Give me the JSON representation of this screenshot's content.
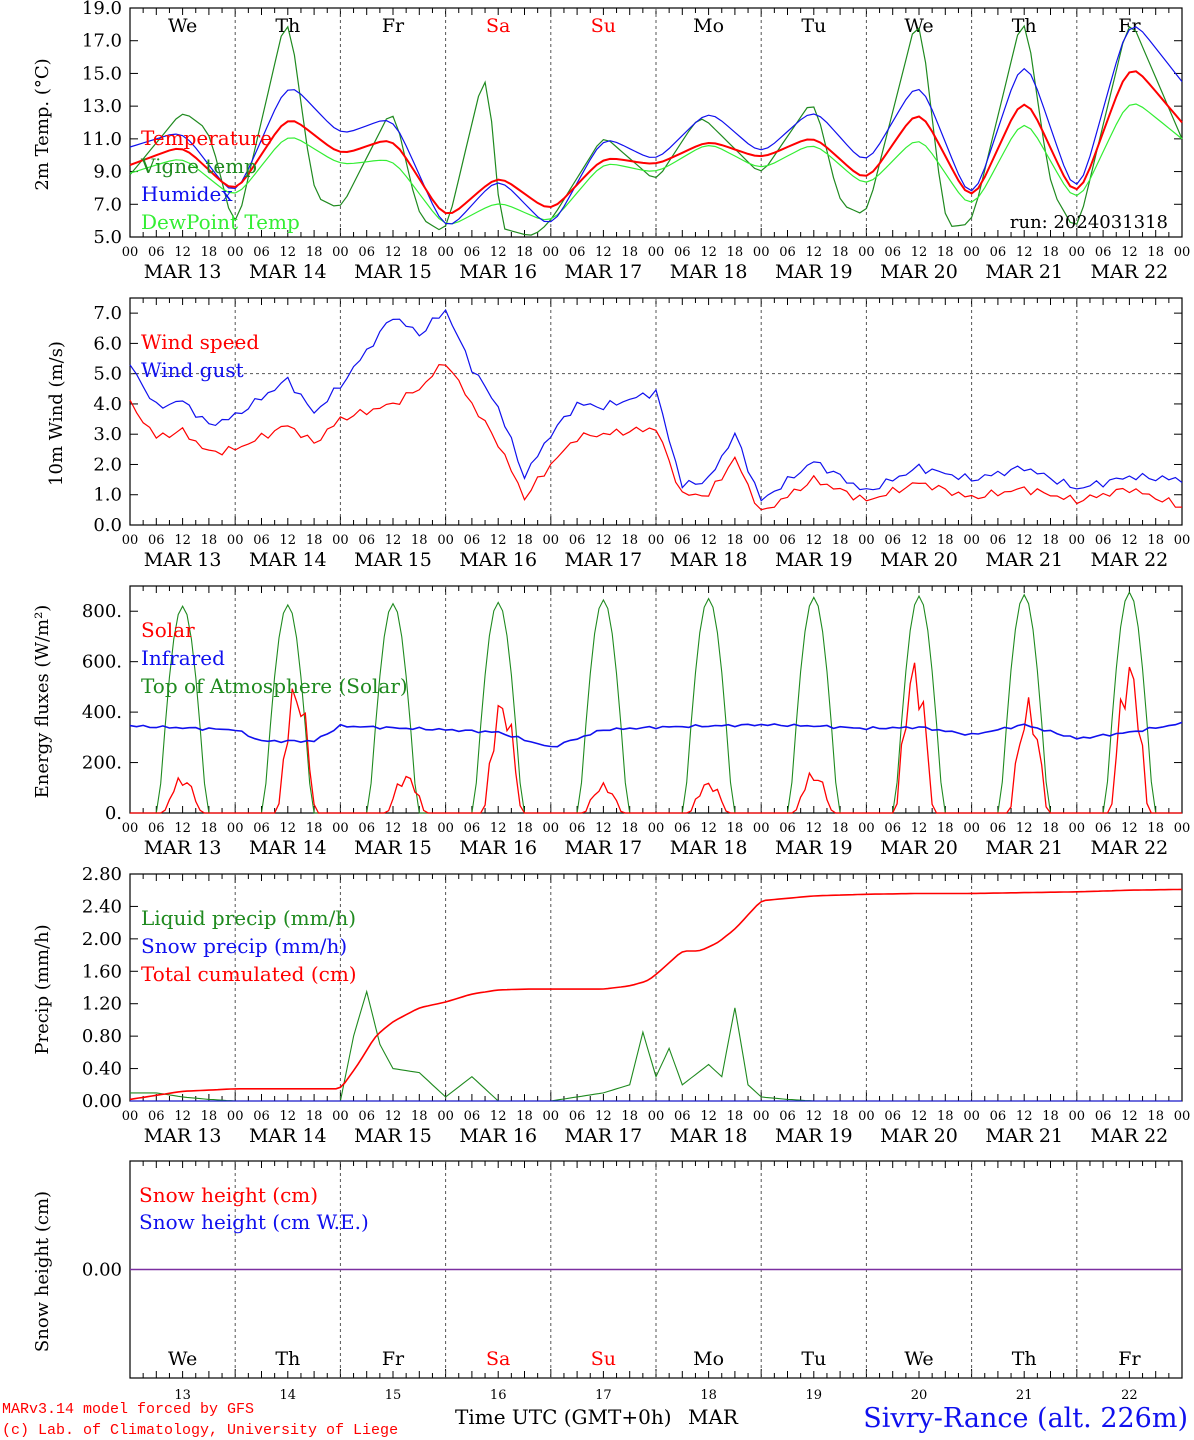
{
  "days": [
    "We",
    "Th",
    "Fr",
    "Sa",
    "Su",
    "Mo",
    "Tu",
    "We",
    "Th",
    "Fr"
  ],
  "day_colors": [
    "#000000",
    "#000000",
    "#000000",
    "#ff0000",
    "#ff0000",
    "#000000",
    "#000000",
    "#000000",
    "#000000",
    "#000000"
  ],
  "date_labels": [
    "MAR 13",
    "MAR 14",
    "MAR 15",
    "MAR 16",
    "MAR 17",
    "MAR 18",
    "MAR 19",
    "MAR 20",
    "MAR 21",
    "MAR 22"
  ],
  "hour_ticks": [
    "00",
    "06",
    "12",
    "18"
  ],
  "final_hour": "00",
  "day_numbers": [
    "13",
    "14",
    "15",
    "16",
    "17",
    "18",
    "19",
    "20",
    "21",
    "22"
  ],
  "run_label": "run: 2024031318",
  "footer": {
    "model_line1": "MARv3.14 model forced by GFS",
    "model_line2": "(c) Lab. of Climatology, University of Liege",
    "time_axis": "Time UTC (GMT+0h)",
    "month": "MAR",
    "station": "Sivry-Rance (alt. 226m)"
  },
  "colors": {
    "red": "#ff0000",
    "green": "#1f8a1f",
    "blue": "#1010ee",
    "light_green": "#33ee33",
    "purple": "#7b2fa0",
    "dashed": "#555555"
  },
  "chart_data": [
    {
      "type": "line",
      "ylabel": "2m Temp. (°C)",
      "ylim": [
        5.0,
        19.0
      ],
      "yticks": [
        "5.0",
        "7.0",
        "9.0",
        "11.0",
        "13.0",
        "15.0",
        "17.0",
        "19.0"
      ],
      "x_unit": "hours since MAR 13 00 UTC",
      "series": [
        {
          "name": "Temperature",
          "color": "red",
          "x": [
            0,
            12,
            24,
            36,
            48,
            60,
            72,
            84,
            96,
            108,
            120,
            132,
            144,
            156,
            168,
            180,
            192,
            204,
            216,
            228,
            240
          ],
          "values": [
            9.4,
            10.6,
            7.6,
            12.5,
            10.0,
            11.1,
            6.0,
            8.8,
            6.5,
            9.9,
            9.4,
            10.9,
            9.8,
            11.2,
            8.3,
            13.0,
            6.9,
            13.9,
            7.0,
            15.8,
            12.0
          ]
        },
        {
          "name": "Vigne temp",
          "color": "green",
          "x": [
            0,
            12,
            18,
            24,
            36,
            42,
            48,
            60,
            66,
            72,
            82,
            84,
            92,
            96,
            108,
            120,
            130,
            144,
            156,
            162,
            168,
            180,
            186,
            192,
            204,
            210,
            216,
            228,
            240
          ],
          "values": [
            8.8,
            12.7,
            11.5,
            5.2,
            19.0,
            7.5,
            6.7,
            13.0,
            6.2,
            5.2,
            16.4,
            5.6,
            5.0,
            6.0,
            11.2,
            8.4,
            12.5,
            8.8,
            13.5,
            7.0,
            6.3,
            19.0,
            5.6,
            5.8,
            19.0,
            8.0,
            5.2,
            18.5,
            11.0
          ]
        },
        {
          "name": "Humidex",
          "color": "blue",
          "x": [
            0,
            12,
            24,
            36,
            48,
            60,
            72,
            84,
            96,
            108,
            120,
            132,
            144,
            156,
            168,
            180,
            192,
            204,
            216,
            228,
            240
          ],
          "values": [
            10.5,
            11.5,
            7.3,
            14.6,
            11.2,
            12.4,
            5.2,
            8.7,
            5.4,
            11.2,
            9.6,
            12.8,
            10.0,
            12.9,
            9.3,
            14.8,
            6.8,
            16.4,
            7.0,
            18.6,
            14.5
          ]
        },
        {
          "name": "DewPoint Temp",
          "color": "light_green",
          "x": [
            0,
            12,
            24,
            36,
            48,
            60,
            72,
            84,
            96,
            108,
            120,
            132,
            144,
            156,
            168,
            180,
            192,
            204,
            216,
            228,
            240
          ],
          "values": [
            8.9,
            9.9,
            7.3,
            11.4,
            9.4,
            9.8,
            5.5,
            7.2,
            5.8,
            9.6,
            8.9,
            10.8,
            9.1,
            10.8,
            8.0,
            11.3,
            6.5,
            12.5,
            6.8,
            13.6,
            11.0
          ]
        }
      ]
    },
    {
      "type": "line",
      "ylabel": "10m Wind (m/s)",
      "ylim": [
        0.0,
        7.5
      ],
      "yticks": [
        "0.0",
        "1.0",
        "2.0",
        "3.0",
        "4.0",
        "5.0",
        "6.0",
        "7.0"
      ],
      "reference_line": 5.0,
      "series": [
        {
          "name": "Wind speed",
          "color": "red",
          "x": [
            0,
            6,
            12,
            18,
            24,
            36,
            42,
            48,
            60,
            66,
            72,
            78,
            84,
            90,
            96,
            102,
            108,
            120,
            126,
            132,
            138,
            144,
            156,
            168,
            180,
            192,
            204,
            216,
            228,
            240
          ],
          "values": [
            4.0,
            2.9,
            3.1,
            2.4,
            2.5,
            3.3,
            2.7,
            3.5,
            4.0,
            4.5,
            5.4,
            4.0,
            2.7,
            0.9,
            2.0,
            2.9,
            3.0,
            3.2,
            1.0,
            1.0,
            2.2,
            0.4,
            1.5,
            0.8,
            1.4,
            0.9,
            1.2,
            0.8,
            1.2,
            0.6
          ]
        },
        {
          "name": "Wind gust",
          "color": "blue",
          "x": [
            0,
            6,
            12,
            18,
            24,
            36,
            42,
            48,
            60,
            66,
            72,
            78,
            84,
            90,
            96,
            102,
            108,
            120,
            126,
            132,
            138,
            144,
            156,
            168,
            180,
            192,
            204,
            216,
            228,
            240
          ],
          "values": [
            5.3,
            3.9,
            4.1,
            3.3,
            3.6,
            4.8,
            3.7,
            4.6,
            6.9,
            6.3,
            7.1,
            5.2,
            3.9,
            1.6,
            3.0,
            4.0,
            3.9,
            4.4,
            1.3,
            1.5,
            3.0,
            0.8,
            2.1,
            1.1,
            1.9,
            1.5,
            1.9,
            1.2,
            1.6,
            1.5
          ]
        }
      ]
    },
    {
      "type": "line",
      "ylabel": "Energy fluxes (W/m²)",
      "ylim": [
        0,
        900
      ],
      "yticks": [
        "0.",
        "200.",
        "400.",
        "600.",
        "800."
      ],
      "series": [
        {
          "name": "Solar",
          "color": "red",
          "daily_peak_hour": [
            12,
            14,
            15,
            13,
            12,
            12,
            12,
            11,
            13,
            12
          ],
          "daily_peak": [
            150,
            540,
            160,
            480,
            120,
            130,
            170,
            630,
            460,
            630
          ]
        },
        {
          "name": "Infrared",
          "color": "blue",
          "x": [
            0,
            24,
            30,
            42,
            48,
            72,
            84,
            96,
            108,
            120,
            132,
            144,
            156,
            168,
            180,
            192,
            204,
            216,
            228,
            240
          ],
          "values": [
            345,
            330,
            285,
            285,
            345,
            330,
            320,
            260,
            330,
            340,
            345,
            350,
            345,
            335,
            340,
            310,
            350,
            295,
            320,
            355
          ]
        },
        {
          "name": "Top of Atmosphere (Solar)",
          "color": "green",
          "daily_peak": [
            820,
            825,
            830,
            835,
            845,
            850,
            855,
            860,
            865,
            875
          ]
        }
      ]
    },
    {
      "type": "line",
      "ylabel": "Precip (mm/h)",
      "ylim": [
        0.0,
        2.8
      ],
      "yticks": [
        "0.00",
        "0.40",
        "0.80",
        "1.20",
        "1.60",
        "2.00",
        "2.40",
        "2.80"
      ],
      "series": [
        {
          "name": "Liquid precip (mm/h)",
          "color": "green",
          "x": [
            0,
            6,
            12,
            18,
            24,
            48,
            51,
            54,
            57,
            60,
            66,
            72,
            78,
            84,
            90,
            96,
            108,
            114,
            117,
            120,
            123,
            126,
            132,
            135,
            138,
            141,
            144,
            150,
            156,
            240
          ],
          "values": [
            0.1,
            0.1,
            0.05,
            0.02,
            0,
            0,
            0.8,
            1.35,
            0.7,
            0.4,
            0.35,
            0.05,
            0.3,
            0,
            0,
            0,
            0.1,
            0.2,
            0.85,
            0.3,
            0.65,
            0.2,
            0.45,
            0.3,
            1.15,
            0.2,
            0.05,
            0.02,
            0,
            0
          ]
        },
        {
          "name": "Snow precip (mm/h)",
          "color": "blue",
          "x": [
            0,
            240
          ],
          "values": [
            0,
            0
          ]
        },
        {
          "name": "Total cumulated (cm)",
          "color": "red",
          "x": [
            0,
            12,
            24,
            48,
            52,
            56,
            60,
            66,
            72,
            78,
            84,
            90,
            96,
            108,
            114,
            118,
            120,
            126,
            130,
            134,
            138,
            144,
            150,
            156,
            168,
            180,
            192,
            216,
            228,
            240
          ],
          "values": [
            0.02,
            0.12,
            0.15,
            0.15,
            0.45,
            0.8,
            0.98,
            1.15,
            1.22,
            1.32,
            1.37,
            1.38,
            1.38,
            1.38,
            1.42,
            1.48,
            1.56,
            1.85,
            1.85,
            1.95,
            2.12,
            2.47,
            2.5,
            2.53,
            2.55,
            2.56,
            2.56,
            2.58,
            2.6,
            2.61
          ]
        }
      ]
    },
    {
      "type": "line",
      "ylabel": "Snow height (cm)",
      "yticks": [
        "0.00"
      ],
      "series": [
        {
          "name": "Snow height (cm)",
          "color": "red",
          "x": [
            0,
            240
          ],
          "values": [
            0,
            0
          ]
        },
        {
          "name": "Snow height (cm W.E.)",
          "color": "blue",
          "x": [
            0,
            240
          ],
          "values": [
            0,
            0
          ]
        }
      ]
    }
  ]
}
